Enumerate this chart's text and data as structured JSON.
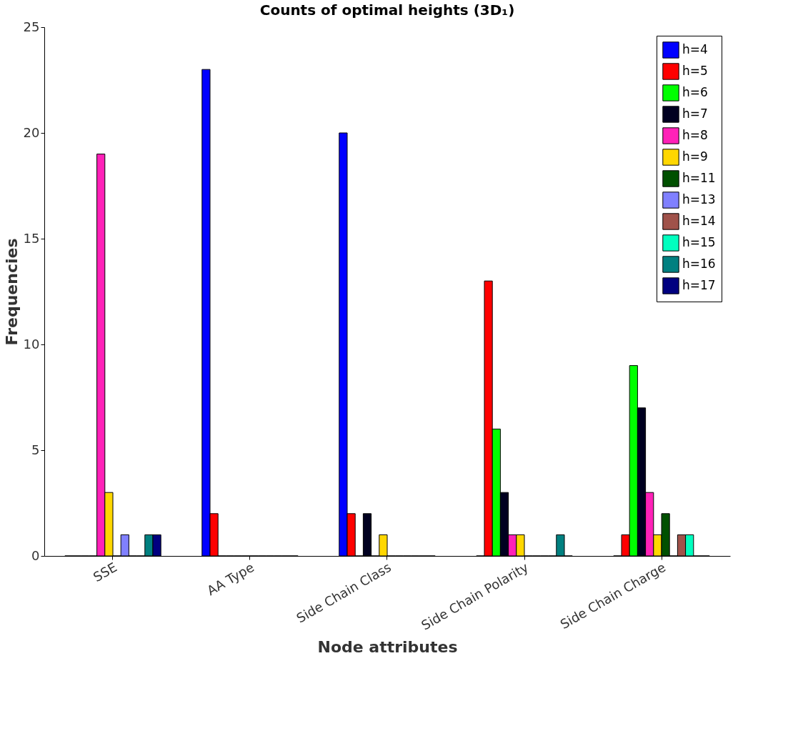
{
  "chart_data": {
    "type": "bar",
    "title": "Counts of optimal heights (3D₁)",
    "xlabel": "Node attributes",
    "ylabel": "Frequencies",
    "categories": [
      "SSE",
      "AA Type",
      "Side Chain Class",
      "Side Chain Polarity",
      "Side Chain Charge"
    ],
    "ylim": [
      0,
      25
    ],
    "yticks": [
      0,
      5,
      10,
      15,
      20,
      25
    ],
    "grid": false,
    "legend": "top right",
    "series": [
      {
        "name": "h=4",
        "color": "#0000ff",
        "values": [
          0,
          23,
          20,
          0,
          0
        ]
      },
      {
        "name": "h=5",
        "color": "#ff0000",
        "values": [
          0,
          2,
          2,
          13,
          1
        ]
      },
      {
        "name": "h=6",
        "color": "#00ff00",
        "values": [
          0,
          0,
          0,
          6,
          9
        ]
      },
      {
        "name": "h=7",
        "color": "#000020",
        "values": [
          0,
          0,
          2,
          3,
          7
        ]
      },
      {
        "name": "h=8",
        "color": "#ff21b8",
        "values": [
          19,
          0,
          0,
          1,
          3
        ]
      },
      {
        "name": "h=9",
        "color": "#ffd700",
        "values": [
          3,
          0,
          1,
          1,
          1
        ]
      },
      {
        "name": "h=11",
        "color": "#005000",
        "values": [
          0,
          0,
          0,
          0,
          2
        ]
      },
      {
        "name": "h=13",
        "color": "#8080ff",
        "values": [
          1,
          0,
          0,
          0,
          0
        ]
      },
      {
        "name": "h=14",
        "color": "#a0524a",
        "values": [
          0,
          0,
          0,
          0,
          1
        ]
      },
      {
        "name": "h=15",
        "color": "#00ffbf",
        "values": [
          0,
          0,
          0,
          0,
          1
        ]
      },
      {
        "name": "h=16",
        "color": "#008080",
        "values": [
          1,
          0,
          0,
          1,
          0
        ]
      },
      {
        "name": "h=17",
        "color": "#000080",
        "values": [
          1,
          0,
          0,
          0,
          0
        ]
      }
    ]
  }
}
